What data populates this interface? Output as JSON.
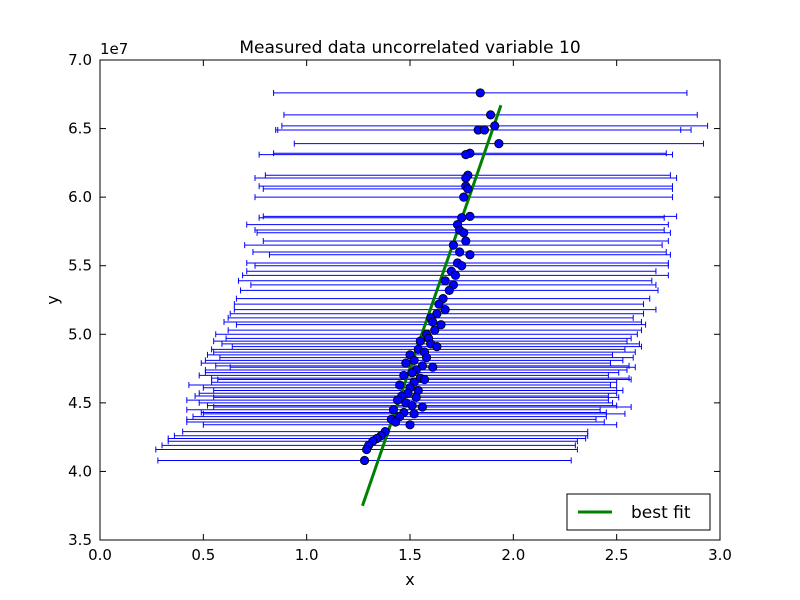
{
  "chart_data": {
    "type": "scatter",
    "title": "Measured data uncorrelated variable 10",
    "xlabel": "x",
    "ylabel": "y",
    "xlim": [
      0.0,
      3.0
    ],
    "ylim": [
      35000000,
      70000000
    ],
    "y_scale_label": "1e7",
    "x_ticks": [
      0.0,
      0.5,
      1.0,
      1.5,
      2.0,
      2.5,
      3.0
    ],
    "x_tick_labels": [
      "0.0",
      "0.5",
      "1.0",
      "1.5",
      "2.0",
      "2.5",
      "3.0"
    ],
    "y_ticks": [
      35000000,
      40000000,
      45000000,
      50000000,
      55000000,
      60000000,
      65000000,
      70000000
    ],
    "y_tick_labels": [
      "3.5",
      "4.0",
      "4.5",
      "5.0",
      "5.5",
      "6.0",
      "6.5",
      "7.0"
    ],
    "grid": false,
    "legend_position": "lower-right",
    "colors": {
      "points": "#0000ff",
      "errorbars": "#0000ff",
      "fit": "#008000",
      "axes": "#000000"
    },
    "series": [
      {
        "name": "",
        "kind": "scatter-xerr",
        "x": [
          1.84,
          1.89,
          1.91,
          1.83,
          1.86,
          1.93,
          1.79,
          1.77,
          1.78,
          1.77,
          1.77,
          1.78,
          1.76,
          1.75,
          1.79,
          1.73,
          1.74,
          1.76,
          1.77,
          1.71,
          1.74,
          1.79,
          1.73,
          1.75,
          1.7,
          1.72,
          1.67,
          1.71,
          1.69,
          1.66,
          1.64,
          1.67,
          1.63,
          1.6,
          1.61,
          1.65,
          1.62,
          1.58,
          1.59,
          1.55,
          1.6,
          1.63,
          1.54,
          1.57,
          1.5,
          1.58,
          1.52,
          1.48,
          1.56,
          1.61,
          1.53,
          1.51,
          1.47,
          1.55,
          1.57,
          1.52,
          1.45,
          1.5,
          1.54,
          1.49,
          1.46,
          1.53,
          1.44,
          1.48,
          1.51,
          1.56,
          1.42,
          1.47,
          1.52,
          1.45,
          1.41,
          1.43,
          1.5,
          1.38,
          1.36,
          1.34,
          1.32,
          1.3,
          1.29,
          1.28
        ],
        "y": [
          67600000,
          66000000,
          65200000,
          64900000,
          64900000,
          63900000,
          63200000,
          63100000,
          61600000,
          61400000,
          60800000,
          60600000,
          60000000,
          58500000,
          58600000,
          58000000,
          57600000,
          57400000,
          56800000,
          56500000,
          56000000,
          55800000,
          55200000,
          55000000,
          54600000,
          54300000,
          53900000,
          53600000,
          53200000,
          52600000,
          52200000,
          51800000,
          51500000,
          51200000,
          50900000,
          50700000,
          50300000,
          50000000,
          49700000,
          49500000,
          49300000,
          49100000,
          48900000,
          48700000,
          48500000,
          48300000,
          48100000,
          47900000,
          47700000,
          47600000,
          47400000,
          47200000,
          47000000,
          46800000,
          46700000,
          46500000,
          46300000,
          46100000,
          45900000,
          45700000,
          45500000,
          45400000,
          45200000,
          45000000,
          44800000,
          44700000,
          44500000,
          44300000,
          44200000,
          44000000,
          43800000,
          43600000,
          43400000,
          42900000,
          42600000,
          42400000,
          42200000,
          41900000,
          41600000,
          40800000
        ],
        "xerr": [
          1.0,
          1.0,
          1.03,
          0.98,
          1.0,
          0.99,
          0.95,
          1.0,
          0.98,
          1.02,
          1.0,
          0.99,
          1.01,
          0.98,
          1.0,
          1.02,
          0.99,
          1.0,
          0.98,
          1.01,
          1.0,
          0.97,
          1.02,
          1.0,
          0.99,
          1.03,
          1.0,
          0.98,
          1.01,
          1.0,
          0.99,
          1.02,
          1.0,
          0.98,
          1.01,
          0.99,
          1.0,
          1.02,
          0.98,
          1.0,
          1.01,
          0.99,
          1.0,
          1.02,
          0.98,
          1.0,
          1.01,
          0.99,
          1.0,
          0.98,
          1.02,
          1.0,
          0.99,
          1.01,
          1.0,
          0.98,
          1.02,
          1.0,
          0.99,
          1.01,
          1.0,
          0.98,
          1.02,
          1.0,
          0.99,
          1.01,
          1.0,
          0.98,
          1.02,
          1.0,
          0.99,
          1.01,
          1.0,
          0.98,
          1.0,
          1.01,
          0.99,
          1.0,
          1.02,
          1.0
        ]
      },
      {
        "name": "best fit",
        "kind": "line",
        "x": [
          1.27,
          1.94
        ],
        "y": [
          37500000,
          66700000
        ]
      }
    ]
  }
}
